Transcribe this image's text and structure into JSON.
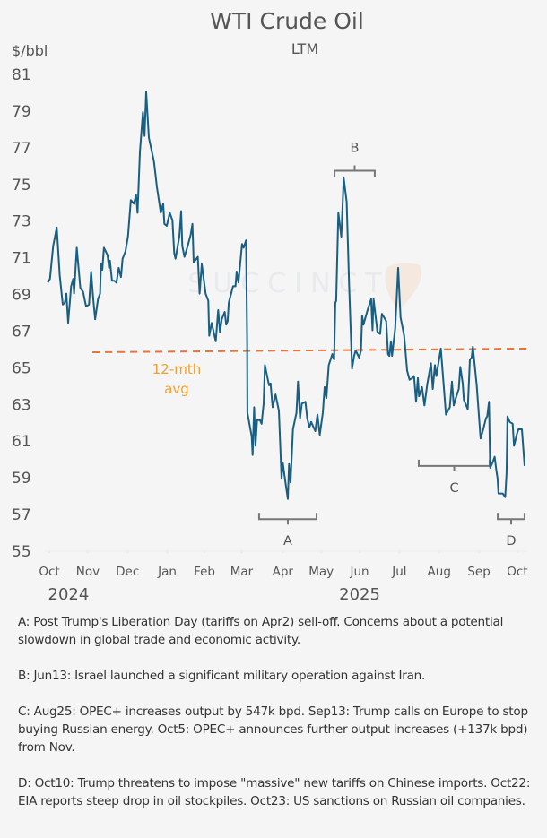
{
  "chart_data": {
    "type": "line",
    "title": "WTI Crude Oil",
    "subtitle": "LTM",
    "ylabel": "$/bbl",
    "xlabel": "",
    "x_unit": "days since 1 Oct 2024",
    "ylim": [
      55,
      81
    ],
    "xlim": [
      -1.5,
      371
    ],
    "yticks": [
      55,
      57,
      59,
      61,
      63,
      65,
      67,
      69,
      71,
      73,
      75,
      77,
      79,
      81
    ],
    "xticks": [
      {
        "label": "Oct",
        "day": 0
      },
      {
        "label": "Nov",
        "day": 30
      },
      {
        "label": "Dec",
        "day": 61
      },
      {
        "label": "Jan",
        "day": 92
      },
      {
        "label": "Feb",
        "day": 121
      },
      {
        "label": "Mar",
        "day": 150
      },
      {
        "label": "Apr",
        "day": 182
      },
      {
        "label": "May",
        "day": 212
      },
      {
        "label": "Jun",
        "day": 242
      },
      {
        "label": "Jul",
        "day": 273
      },
      {
        "label": "Aug",
        "day": 304
      },
      {
        "label": "Sep",
        "day": 335
      },
      {
        "label": "Oct",
        "day": 365
      }
    ],
    "year_labels": [
      {
        "label": "2024",
        "day": 15
      },
      {
        "label": "2025",
        "day": 242
      }
    ],
    "grid": false,
    "series": [
      {
        "name": "WTI",
        "color": "#1a5f82",
        "x": [
          -1.2,
          0.5,
          3.0,
          4.7,
          5.8,
          8.1,
          10.5,
          12.1,
          13.3,
          14.7,
          17.0,
          18.6,
          19.3,
          21.4,
          24.2,
          26.3,
          28.7,
          31.0,
          32.6,
          34.3,
          35.7,
          38.0,
          39.6,
          40.3,
          41.3,
          42.6,
          45.4,
          46.6,
          47.3,
          48.9,
          50.6,
          52.4,
          54.1,
          55.9,
          57.1,
          59.4,
          61.3,
          63.6,
          66.0,
          67.6,
          68.8,
          70.6,
          73.0,
          74.3,
          75.5,
          77.6,
          81.6,
          83.9,
          86.9,
          88.8,
          89.7,
          91.6,
          93.9,
          96.0,
          97.4,
          98.4,
          101.4,
          102.8,
          103.7,
          105.4,
          107.9,
          110.2,
          111.6,
          112.6,
          115.8,
          117.2,
          118.9,
          121.9,
          124.0,
          124.7,
          126.6,
          129.8,
          131.7,
          133.1,
          134.5,
          136.8,
          138.0,
          139.1,
          139.9,
          143.3,
          145.2,
          146.1,
          147.5,
          150.3,
          151.5,
          153.4,
          154.3,
          154.5,
          157.8,
          158.5,
          159.7,
          160.8,
          162.0,
          164.3,
          165.5,
          167.1,
          168.1,
          171.3,
          172.5,
          174.1,
          176.4,
          179.0,
          181.1,
          182.0,
          184.1,
          186.0,
          186.9,
          188.1,
          190.0,
          192.7,
          193.9,
          195.5,
          196.9,
          199.7,
          201.1,
          202.8,
          204.2,
          207.4,
          209.1,
          210.9,
          213.3,
          214.7,
          216.1,
          217.9,
          220.7,
          222.1,
          223.0,
          223.7,
          225.4,
          227.7,
          229.6,
          231.9,
          233.8,
          236.1,
          237.7,
          238.9,
          241.7,
          243.1,
          244.0,
          245.0,
          248.2,
          251.0,
          252.0,
          252.9,
          255.9,
          258.0,
          259.4,
          262.7,
          264.1,
          265.2,
          266.4,
          267.3,
          269.7,
          272.0,
          273.9,
          276.7,
          279.0,
          280.9,
          283.2,
          284.4,
          286.0,
          287.4,
          288.3,
          290.6,
          292.5,
          294.8,
          297.6,
          299.0,
          300.7,
          301.8,
          305.3,
          307.2,
          309.3,
          312.3,
          314.0,
          315.4,
          317.0,
          319.3,
          320.5,
          322.4,
          323.3,
          326.3,
          328.0,
          329.3,
          330.3,
          333.3,
          336.3,
          338.4,
          340.5,
          341.5,
          342.9,
          343.8,
          345.7,
          347.3,
          348.5,
          349.6,
          350.3,
          353.6,
          355.5,
          356.6,
          357.3,
          359.0,
          361.3,
          362.4,
          364.8,
          365.9,
          368.5,
          370.6
        ],
        "values": [
          69.6,
          69.8,
          71.6,
          72.2,
          72.6,
          70.0,
          68.4,
          68.5,
          69.0,
          67.4,
          69.4,
          69.8,
          69.0,
          71.5,
          69.3,
          69.1,
          68.3,
          68.4,
          70.2,
          68.7,
          67.6,
          68.7,
          69.0,
          70.6,
          70.3,
          71.5,
          71.1,
          70.4,
          70.8,
          69.7,
          69.7,
          69.6,
          70.4,
          69.9,
          70.9,
          71.3,
          72.1,
          74.1,
          73.9,
          74.4,
          73.4,
          76.7,
          78.9,
          77.6,
          80.0,
          77.5,
          76.2,
          74.8,
          73.4,
          73.9,
          72.8,
          72.7,
          73.4,
          73.0,
          71.2,
          70.9,
          72.1,
          73.5,
          71.6,
          71.0,
          71.6,
          72.2,
          72.8,
          70.7,
          71.0,
          69.0,
          70.6,
          69.0,
          68.6,
          66.7,
          67.4,
          66.4,
          68.1,
          66.9,
          67.6,
          68.0,
          67.3,
          67.5,
          68.5,
          69.4,
          69.4,
          70.2,
          69.6,
          71.7,
          71.5,
          71.9,
          66.4,
          62.5,
          61.2,
          60.2,
          62.8,
          60.7,
          62.1,
          62.1,
          61.9,
          63.0,
          65.1,
          64.0,
          64.1,
          62.8,
          63.5,
          62.6,
          58.9,
          59.8,
          58.7,
          57.8,
          59.7,
          58.7,
          61.6,
          62.5,
          64.2,
          62.2,
          63.0,
          63.1,
          62.2,
          61.7,
          62.0,
          61.5,
          62.4,
          61.3,
          62.5,
          63.9,
          63.3,
          65.1,
          65.7,
          65.4,
          68.5,
          68.6,
          73.4,
          72.1,
          75.3,
          74.0,
          69.5,
          64.9,
          65.6,
          65.9,
          65.5,
          65.9,
          67.8,
          67.3,
          68.1,
          68.7,
          67.0,
          68.7,
          66.9,
          66.8,
          67.9,
          67.5,
          65.7,
          65.6,
          66.4,
          65.6,
          67.1,
          70.4,
          67.7,
          66.7,
          64.8,
          64.3,
          64.4,
          64.5,
          63.1,
          64.4,
          63.4,
          63.9,
          62.9,
          64.1,
          65.2,
          63.8,
          65.1,
          64.5,
          66.0,
          64.3,
          62.4,
          62.8,
          64.2,
          62.9,
          63.3,
          63.8,
          65.0,
          64.1,
          63.2,
          62.7,
          65.4,
          65.5,
          66.1,
          64.0,
          61.1,
          61.6,
          62.2,
          62.3,
          63.1,
          59.5,
          59.8,
          60.1,
          59.4,
          58.9,
          58.1,
          58.1,
          57.9,
          59.2,
          62.3,
          62.0,
          61.9,
          60.7,
          61.4,
          61.6,
          61.6,
          59.6
        ]
      }
    ],
    "reference_line": {
      "name": "12-mth avg",
      "label_line1": "12-mth",
      "label_line2": "avg",
      "color": "#e8743b",
      "label_color": "#f0a030",
      "start_day": 33.6,
      "end_day": 372,
      "start_value": 65.8,
      "end_value": 66.0
    },
    "annotations": [
      {
        "label": "A",
        "from_day": 163.6,
        "to_day": 208.4,
        "value": 56.7,
        "direction": "below"
      },
      {
        "label": "B",
        "from_day": 222.4,
        "to_day": 253.8,
        "value": 75.7,
        "direction": "above"
      },
      {
        "label": "C",
        "from_day": 288.1,
        "to_day": 343.4,
        "value": 59.6,
        "direction": "below"
      },
      {
        "label": "D",
        "from_day": 349.7,
        "to_day": 370.6,
        "value": 56.7,
        "direction": "below"
      }
    ],
    "watermark": "SUCCINCT"
  },
  "notes": [
    "A: Post Trump's Liberation Day (tariffs on Apr2) sell-off. Concerns about a potential slowdown in global trade and economic activity.",
    "B: Jun13: Israel launched a significant military operation against Iran.",
    "C: Aug25: OPEC+ increases output by 547k bpd. Sep13: Trump calls on Europe to stop buying Russian energy. Oct5: OPEC+ announces further output increases (+137k bpd) from Nov.",
    "D: Oct10: Trump threatens to impose \"massive\" new tariffs on Chinese imports. Oct22: EIA reports steep drop in oil stockpiles. Oct23: US sanctions on Russian oil companies."
  ]
}
